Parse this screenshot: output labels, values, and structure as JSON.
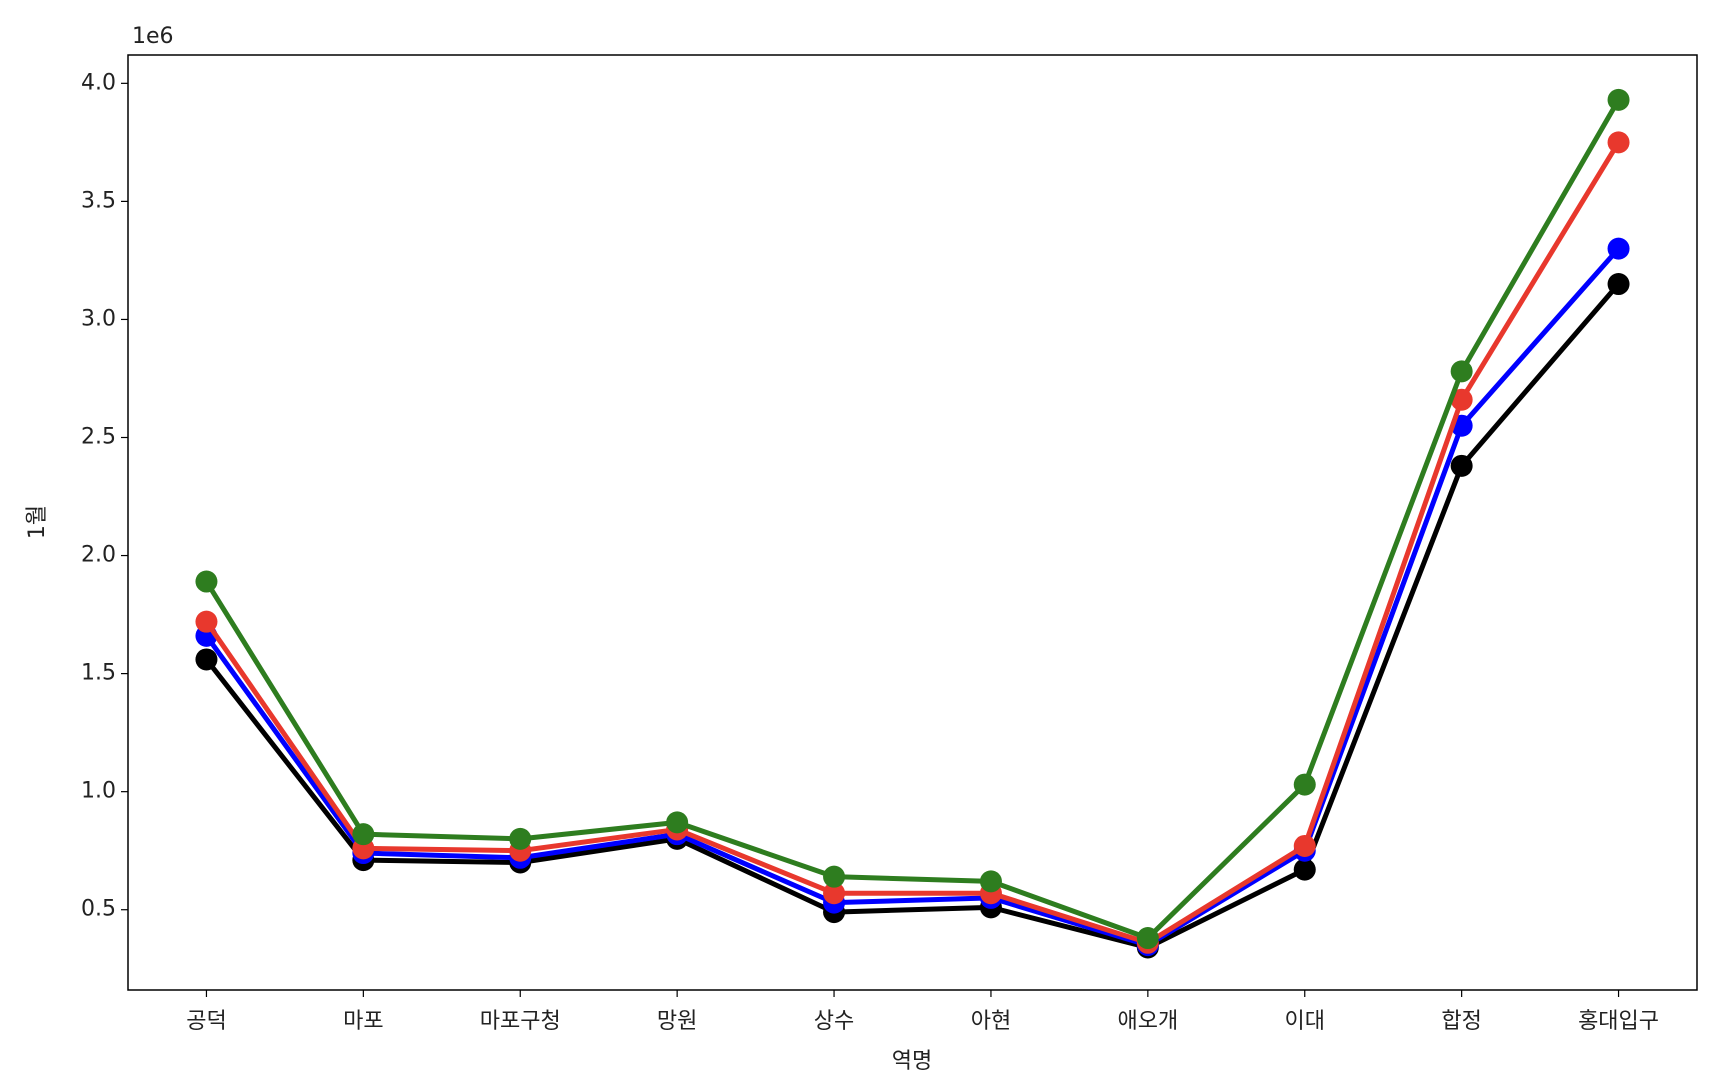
{
  "chart_data": {
    "type": "line",
    "x_label": "역명",
    "y_label": "1월",
    "y_offset_text": "1e6",
    "categories": [
      "공덕",
      "마포",
      "마포구청",
      "망원",
      "상수",
      "아현",
      "애오개",
      "이대",
      "합정",
      "홍대입구"
    ],
    "series": [
      {
        "color": "#000000",
        "values": [
          1.56,
          0.71,
          0.7,
          0.8,
          0.49,
          0.51,
          0.34,
          0.67,
          2.38,
          3.15
        ]
      },
      {
        "color": "#0000ff",
        "values": [
          1.66,
          0.74,
          0.72,
          0.82,
          0.53,
          0.55,
          0.35,
          0.75,
          2.55,
          3.3
        ]
      },
      {
        "color": "#e8382d",
        "values": [
          1.72,
          0.76,
          0.75,
          0.84,
          0.57,
          0.57,
          0.36,
          0.77,
          2.66,
          3.75
        ]
      },
      {
        "color": "#2e7d1f",
        "values": [
          1.89,
          0.82,
          0.8,
          0.87,
          0.64,
          0.62,
          0.38,
          1.03,
          2.78,
          3.93
        ]
      }
    ],
    "ylim": [
      0.16,
      4.12
    ],
    "yticks": [
      0.5,
      {
        "value": 1,
        "label": "1.0"
      },
      1.5,
      {
        "value": 2,
        "label": "2.0"
      },
      2.5,
      {
        "value": 3,
        "label": "3.0"
      },
      3.5,
      {
        "value": 4,
        "label": "4.0"
      }
    ],
    "grid": false
  }
}
